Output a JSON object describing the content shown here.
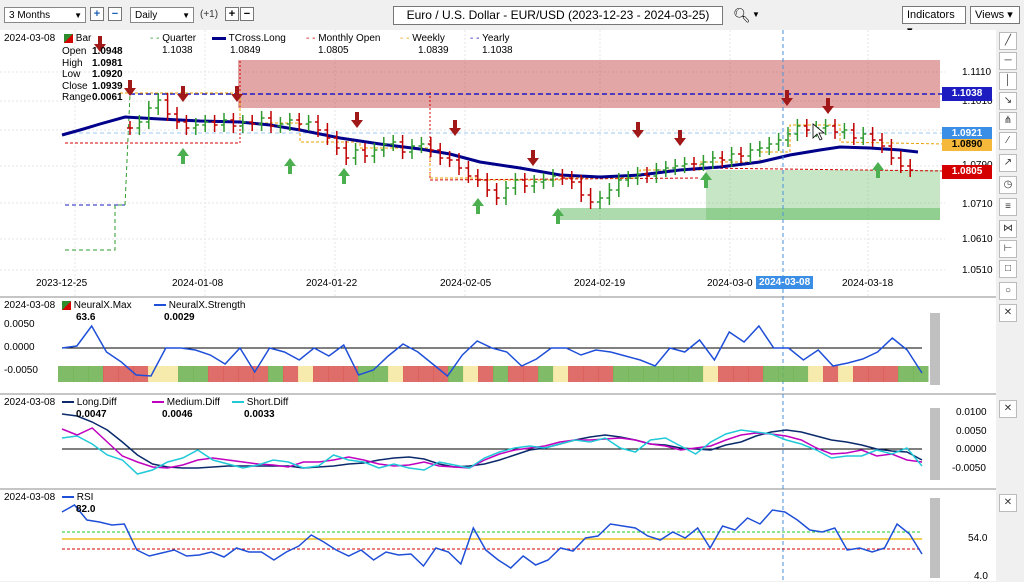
{
  "toolbar": {
    "range": "3 Months",
    "interval": "Daily",
    "plus_one": "(+1)",
    "title": "Euro / U.S. Dollar - EUR/USD (2023-12-23 - 2024-03-25)",
    "indicators": "Indicators",
    "views": "Views"
  },
  "price_panel": {
    "date": "2024-03-08",
    "legend": [
      {
        "label": "Bar",
        "value": "",
        "color": "#2e8b2e"
      },
      {
        "label": "Quarter",
        "value": "1.1038",
        "color": "#2e9a2e"
      },
      {
        "label": "TCross.Long",
        "value": "1.0849",
        "color": "#00008b"
      },
      {
        "label": "Monthly Open",
        "value": "1.0805",
        "color": "#d40000"
      },
      {
        "label": "Weekly",
        "value": "1.0839",
        "color": "#e8a000"
      },
      {
        "label": "Yearly",
        "value": "1.1038",
        "color": "#1c1cc0"
      }
    ],
    "ohlc_labels": [
      "Open",
      "High",
      "Low",
      "Close",
      "Range"
    ],
    "ohlc_values": [
      "1.0948",
      "1.0981",
      "1.0920",
      "1.0939",
      "0.0061"
    ],
    "y_ticks": [
      "1.1110",
      "1.1010",
      "1.0790",
      "1.0710",
      "1.0610",
      "1.0510"
    ],
    "price_tags": [
      {
        "text": "1.1038",
        "color": "#1c1cc0"
      },
      {
        "text": "1.0921",
        "color": "#3a8ee6"
      },
      {
        "text": "1.0890",
        "color": "#e8a000"
      },
      {
        "text": "1.0805",
        "color": "#d40000"
      }
    ],
    "x_ticks": [
      "2023-12-25",
      "2024-01-08",
      "2024-01-22",
      "2024-02-05",
      "2024-02-19",
      "2024-03-0",
      "2024-03-18"
    ],
    "cursor_date": "2024-03-08"
  },
  "neural_panel": {
    "date": "2024-03-08",
    "legend": [
      {
        "label": "NeuralX.Max",
        "value": "63.6",
        "color": "#c00000"
      },
      {
        "label": "NeuralX.Strength",
        "value": "0.0029",
        "color": "#1f4fd8"
      }
    ],
    "y_ticks": [
      "0.0050",
      "0.0000",
      "-0.0050"
    ]
  },
  "diff_panel": {
    "date": "2024-03-08",
    "legend": [
      {
        "label": "Long.Diff",
        "value": "0.0047",
        "color": "#0a2a6b"
      },
      {
        "label": "Medium.Diff",
        "value": "0.0046",
        "color": "#c000c0"
      },
      {
        "label": "Short.Diff",
        "value": "0.0033",
        "color": "#20c8d8"
      }
    ],
    "y_ticks": [
      "0.0100",
      "0.0050",
      "0.0000",
      "-0.0050"
    ]
  },
  "rsi_panel": {
    "date": "2024-03-08",
    "legend": [
      {
        "label": "RSI",
        "value": "82.0",
        "color": "#1f4fd8"
      }
    ],
    "y_ticks": [
      "54.0",
      "4.0"
    ]
  },
  "right_toolbar": [
    "arrow",
    "line-diag",
    "line-h",
    "line-v",
    "pitchfork",
    "line-alt",
    "clock",
    "bars",
    "text",
    "ruler",
    "square",
    "circle",
    "close"
  ]
}
